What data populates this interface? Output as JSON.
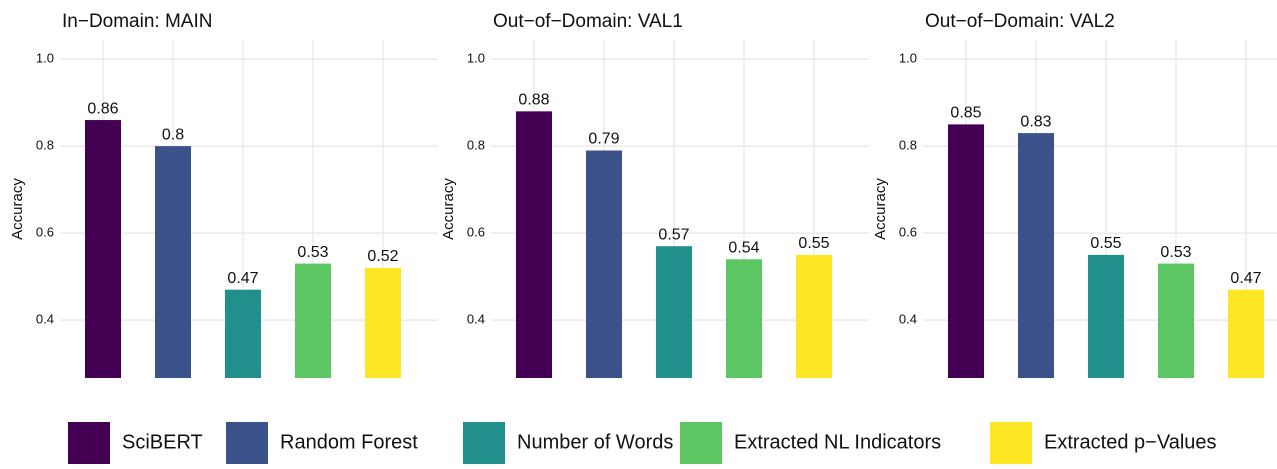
{
  "chart_data": [
    {
      "type": "bar",
      "title": "In−Domain: MAIN",
      "y_label": "Accuracy",
      "categories": [
        "SciBERT",
        "Random Forest",
        "Number of Words",
        "Extracted NL Indicators",
        "Extracted p−Values"
      ],
      "colors": [
        "#440154",
        "#3b528b",
        "#21908c",
        "#5dc863",
        "#fde725"
      ],
      "values": [
        0.86,
        0.8,
        0.47,
        0.53,
        0.52
      ],
      "ylim": [
        0.267,
        1.044
      ],
      "yticks": [
        0.4,
        0.6,
        0.8,
        {
          "value": 1.0,
          "label": "1.0"
        }
      ],
      "grid": true
    },
    {
      "type": "bar",
      "title": "Out−of−Domain: VAL1",
      "y_label": "Accuracy",
      "categories": [
        "SciBERT",
        "Random Forest",
        "Number of Words",
        "Extracted NL Indicators",
        "Extracted p−Values"
      ],
      "colors": [
        "#440154",
        "#3b528b",
        "#21908c",
        "#5dc863",
        "#fde725"
      ],
      "values": [
        0.88,
        0.79,
        0.57,
        0.54,
        0.55
      ],
      "ylim": [
        0.267,
        1.044
      ],
      "yticks": [
        0.4,
        0.6,
        0.8,
        {
          "value": 1.0,
          "label": "1.0"
        }
      ],
      "grid": true
    },
    {
      "type": "bar",
      "title": "Out−of−Domain: VAL2",
      "y_label": "Accuracy",
      "categories": [
        "SciBERT",
        "Random Forest",
        "Number of Words",
        "Extracted NL Indicators",
        "Extracted p−Values"
      ],
      "colors": [
        "#440154",
        "#3b528b",
        "#21908c",
        "#5dc863",
        "#fde725"
      ],
      "values": [
        0.85,
        0.83,
        0.55,
        0.53,
        0.47
      ],
      "ylim": [
        0.267,
        1.044
      ],
      "yticks": [
        0.4,
        0.6,
        0.8,
        {
          "value": 1.0,
          "label": "1.0"
        }
      ],
      "grid": true
    }
  ]
}
